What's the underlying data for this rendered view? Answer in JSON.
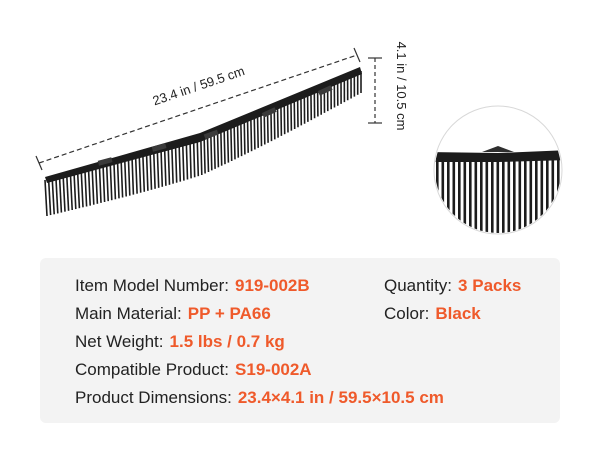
{
  "dimensions": {
    "length_label": "23.4 in / 59.5 cm",
    "height_label": "4.1 in / 10.5 cm"
  },
  "product": {
    "color": "#1c1c1c",
    "detail_view_icon": "magnified-comb-detail"
  },
  "accent_color": "#ef5a2b",
  "specs": {
    "model": {
      "label": "Item Model Number:",
      "value": "919-002B"
    },
    "quantity": {
      "label": "Quantity:",
      "value": "3 Packs"
    },
    "material": {
      "label": "Main Material:",
      "value": "PP + PA66"
    },
    "color": {
      "label": "Color:",
      "value": "Black"
    },
    "weight": {
      "label": "Net Weight:",
      "value": "1.5 lbs / 0.7 kg"
    },
    "compatible": {
      "label": "Compatible Product:",
      "value": "S19-002A"
    },
    "dims": {
      "label": "Product Dimensions:",
      "value": "23.4×4.1 in / 59.5×10.5 cm"
    }
  }
}
